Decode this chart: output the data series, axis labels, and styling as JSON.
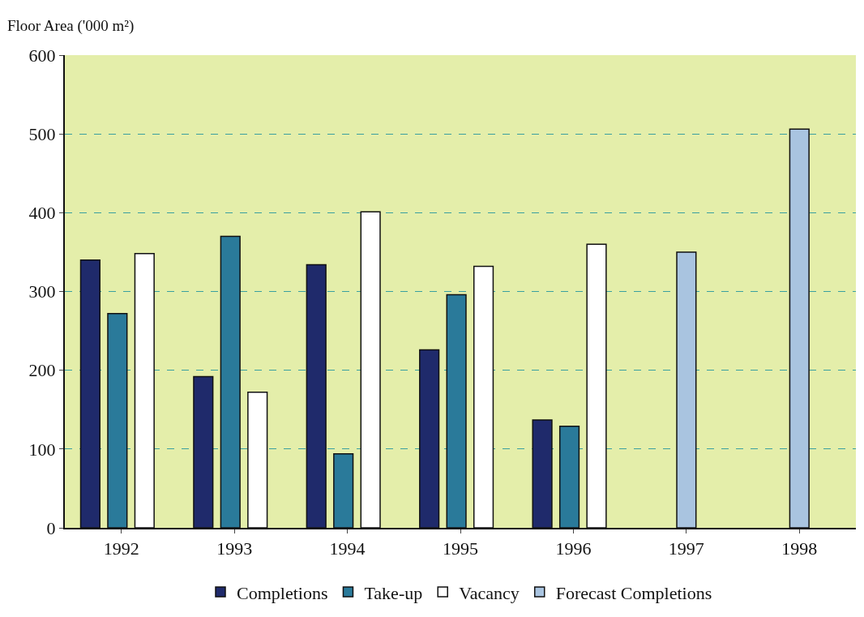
{
  "chart_data": {
    "type": "bar",
    "ylabel": "Floor Area ('000 m²)",
    "categories": [
      "1992",
      "1993",
      "1994",
      "1995",
      "1996",
      "1997",
      "1998"
    ],
    "series": [
      {
        "name": "Completions",
        "color": "#1f2a6b",
        "values": [
          340,
          192,
          334,
          226,
          137,
          null,
          null
        ]
      },
      {
        "name": "Take-up",
        "color": "#2a7a9a",
        "values": [
          272,
          370,
          94,
          296,
          129,
          null,
          null
        ]
      },
      {
        "name": "Vacancy",
        "color": "#ffffff",
        "values": [
          348,
          172,
          401,
          332,
          360,
          null,
          null
        ]
      },
      {
        "name": "Forecast Completions",
        "color": "#a9c4e0",
        "values": [
          null,
          null,
          null,
          null,
          null,
          350,
          506
        ]
      }
    ],
    "ylim": [
      0,
      600
    ],
    "yticks": [
      0,
      100,
      200,
      300,
      400,
      500,
      600
    ],
    "grid": "y",
    "legend": "bottom"
  }
}
